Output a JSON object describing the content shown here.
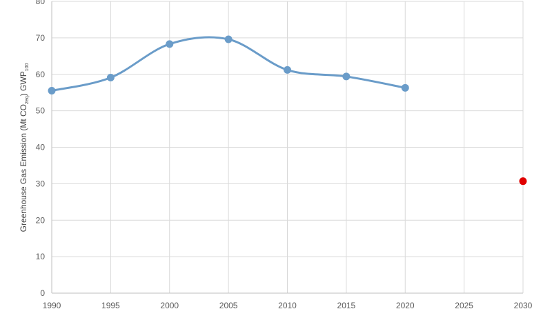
{
  "chart_data": {
    "type": "line",
    "title": "",
    "xlabel": "",
    "ylabel": {
      "prefix": "Greenhouse Gas Emission (Mt CO",
      "sub1": "2eq",
      "mid": ") GWP",
      "sub2": "100"
    },
    "xlim": [
      1990,
      2030
    ],
    "ylim": [
      0,
      80
    ],
    "x_ticks": [
      1990,
      1995,
      2000,
      2005,
      2010,
      2015,
      2020,
      2025,
      2030
    ],
    "y_ticks": [
      0,
      10,
      20,
      30,
      40,
      50,
      60,
      70,
      80
    ],
    "grid": true,
    "series": [
      {
        "x": [
          1990,
          1995,
          2000,
          2005,
          2010,
          2015,
          2020
        ],
        "y": [
          55.5,
          59.1,
          68.3,
          69.6,
          61.2,
          59.4,
          56.3
        ],
        "color": "#6a9cc9",
        "smooth": true
      },
      {
        "x": [
          2030
        ],
        "y": [
          30.7
        ],
        "color": "#e00000",
        "marker_only": true
      }
    ]
  }
}
